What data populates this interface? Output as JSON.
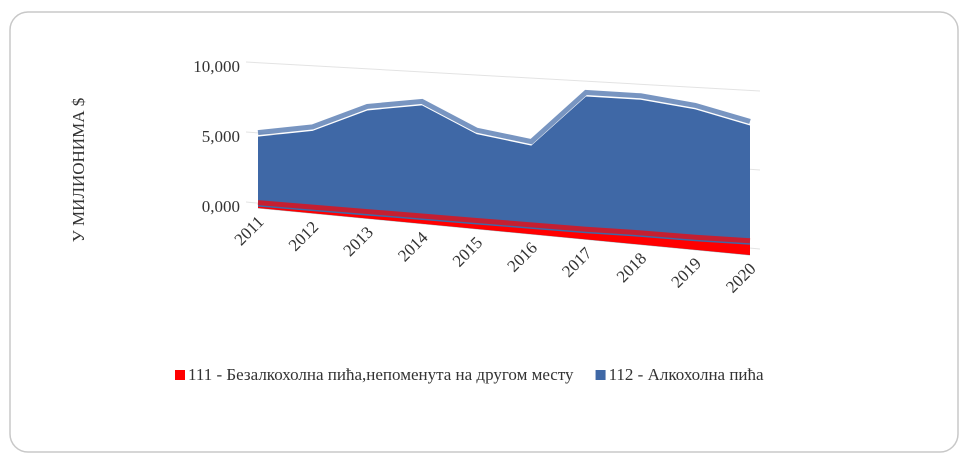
{
  "chart_data": {
    "type": "area3d",
    "y_label": "У МИЛИОНИМА $",
    "categories": [
      "2011",
      "2012",
      "2013",
      "2014",
      "2015",
      "2016",
      "2017",
      "2018",
      "2019",
      "2020"
    ],
    "series": [
      {
        "name": "111 - Безалкохолна пића,непоменута на другом месту",
        "color": "#ff0000",
        "values": [
          100,
          150,
          200,
          250,
          300,
          350,
          400,
          500,
          550,
          650
        ]
      },
      {
        "name": "112 - Алкохолна пића",
        "color": "#3f68a6",
        "values": [
          5100,
          5800,
          7500,
          8100,
          6400,
          5900,
          9400,
          9400,
          9000,
          8200
        ]
      }
    ],
    "ylim": [
      0,
      10000
    ],
    "yticks": [
      {
        "value": 0,
        "label": "0,000"
      },
      {
        "value": 5000,
        "label": "5,000"
      },
      {
        "value": 10000,
        "label": "10,000"
      }
    ],
    "grid": true
  }
}
